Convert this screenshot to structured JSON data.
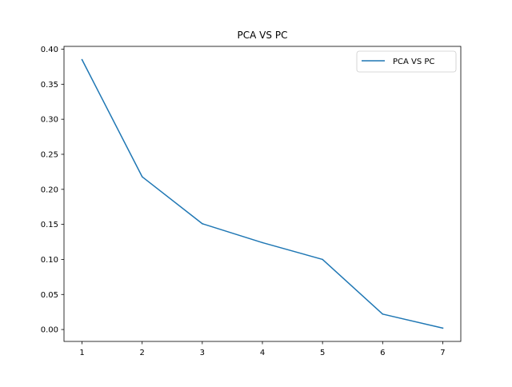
{
  "chart_data": {
    "type": "line",
    "title": "PCA VS PC",
    "xlabel": "",
    "ylabel": "",
    "x": [
      1,
      2,
      3,
      4,
      5,
      6,
      7
    ],
    "series": [
      {
        "name": "PCA VS PC",
        "values": [
          0.385,
          0.218,
          0.151,
          0.124,
          0.1,
          0.022,
          0.002
        ],
        "color": "#1f77b4"
      }
    ],
    "xlim": [
      0.7,
      7.3
    ],
    "ylim": [
      -0.017,
      0.404
    ],
    "xticks": [
      "1",
      "2",
      "3",
      "4",
      "5",
      "6",
      "7"
    ],
    "yticks": [
      "0.00",
      "0.05",
      "0.10",
      "0.15",
      "0.20",
      "0.25",
      "0.30",
      "0.35",
      "0.40"
    ],
    "grid": false,
    "legend_position": "top-right"
  }
}
